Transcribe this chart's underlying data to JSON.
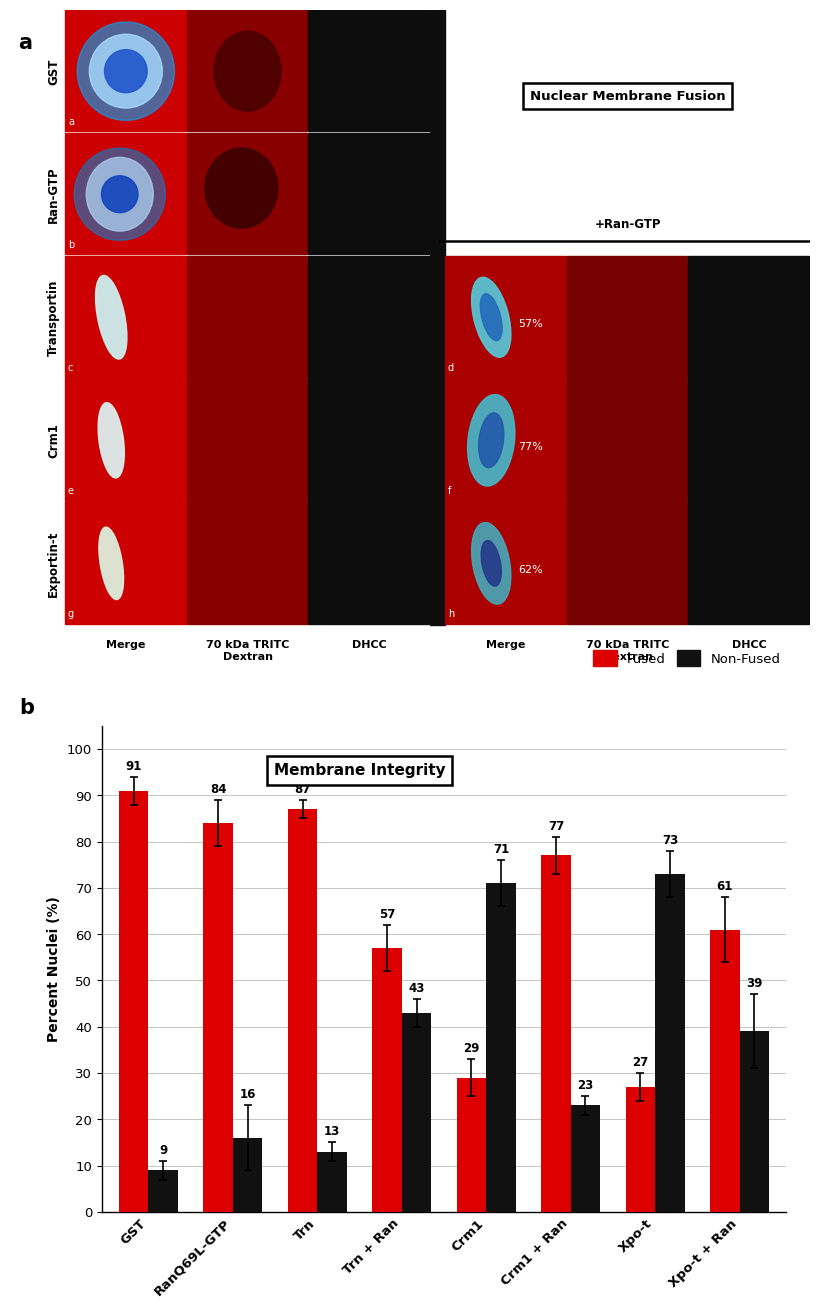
{
  "panel_b": {
    "title": "Membrane Integrity",
    "ylabel": "Percent Nuclei (%)",
    "categories": [
      "GST",
      "RanQ69L-GTP",
      "Trn",
      "Trn + Ran",
      "Crm1",
      "Crm1 + Ran",
      "Xpo-t",
      "Xpo-t + Ran"
    ],
    "fused_values": [
      91,
      84,
      87,
      57,
      29,
      77,
      27,
      61
    ],
    "nonfused_values": [
      9,
      16,
      13,
      43,
      71,
      23,
      73,
      39
    ],
    "fused_errors": [
      3,
      5,
      2,
      5,
      4,
      4,
      3,
      7
    ],
    "nonfused_errors": [
      2,
      7,
      2,
      3,
      5,
      2,
      5,
      8
    ],
    "fused_color": "#dd0000",
    "nonfused_color": "#111111",
    "ylim": [
      0,
      105
    ],
    "yticks": [
      0,
      10,
      20,
      30,
      40,
      50,
      60,
      70,
      80,
      90,
      100
    ],
    "bar_width": 0.35,
    "legend_fused": "Fused",
    "legend_nonfused": "Non-Fused"
  },
  "panel_a": {
    "label": "a",
    "col_labels": [
      "Merge",
      "70 kDa TRITC\nDextran",
      "DHCC"
    ],
    "row_labels": [
      "GST",
      "Ran-GTP",
      "Transportin",
      "Crm1",
      "Exportin-t"
    ],
    "ran_gtp_label": "+Ran-GTP",
    "nuclear_membrane_fusion_label": "Nuclear Membrane Fusion"
  }
}
